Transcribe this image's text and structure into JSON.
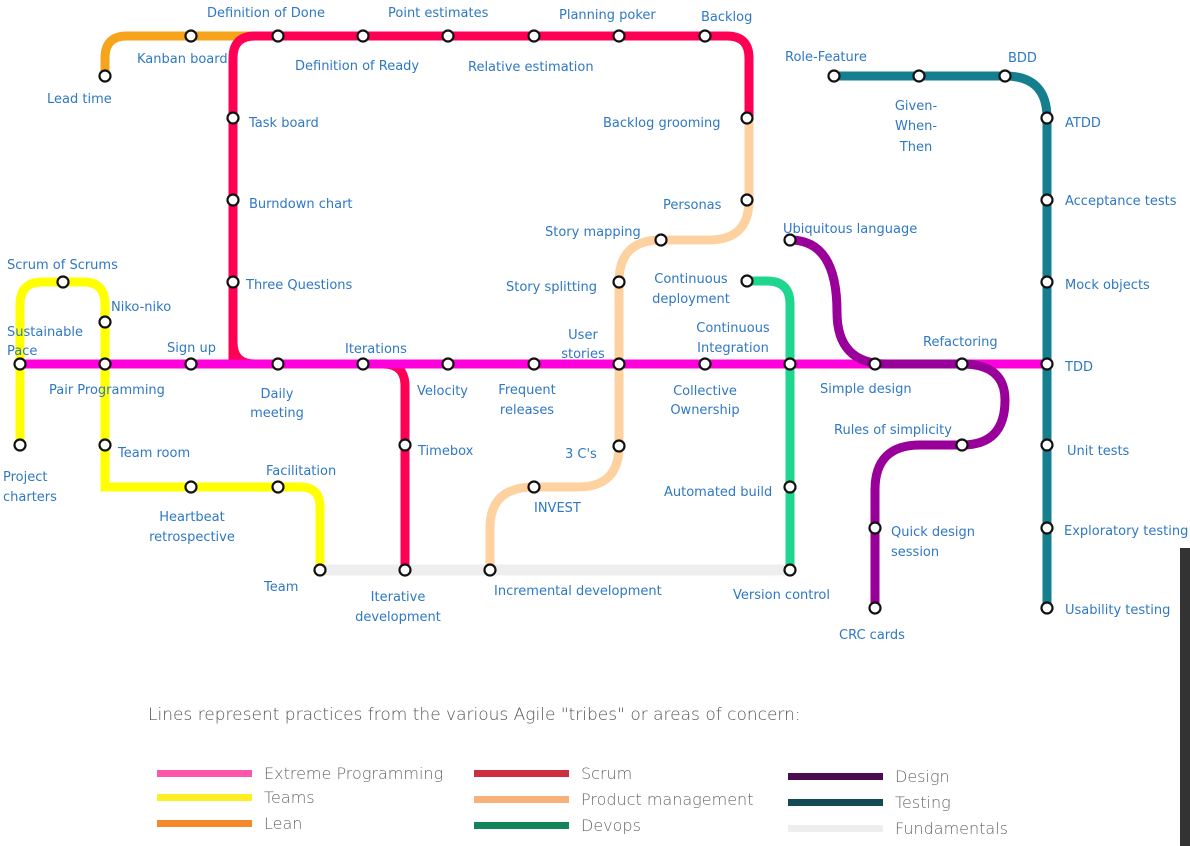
{
  "colors": {
    "xp": "#ff00dd",
    "scrum": "#ff0055",
    "lean": "#f5a41b",
    "teams": "#ffff00",
    "product": "#fdd2a0",
    "devops": "#1fd68f",
    "design": "#990099",
    "testing": "#167f8f",
    "fundamentals": "#eeeeee"
  },
  "stations": [
    {
      "id": "lead-time",
      "label": "Lead time"
    },
    {
      "id": "kanban-board",
      "label": "Kanban board"
    },
    {
      "id": "definition-of-done",
      "label": "Definition of Done"
    },
    {
      "id": "definition-of-ready",
      "label": "Definition of Ready"
    },
    {
      "id": "point-estimates",
      "label": "Point estimates"
    },
    {
      "id": "relative-estimation",
      "label": "Relative estimation"
    },
    {
      "id": "planning-poker",
      "label": "Planning poker"
    },
    {
      "id": "backlog",
      "label": "Backlog"
    },
    {
      "id": "backlog-grooming",
      "label": "Backlog grooming"
    },
    {
      "id": "personas",
      "label": "Personas"
    },
    {
      "id": "story-mapping",
      "label": "Story mapping"
    },
    {
      "id": "story-splitting",
      "label": "Story splitting"
    },
    {
      "id": "task-board",
      "label": "Task board"
    },
    {
      "id": "burndown-chart",
      "label": "Burndown chart"
    },
    {
      "id": "three-questions",
      "label": "Three Questions"
    },
    {
      "id": "scrum-of-scrums",
      "label": "Scrum of Scrums"
    },
    {
      "id": "niko-niko",
      "label": "Niko-niko"
    },
    {
      "id": "sustainable-pace",
      "label": "Sustainable Pace"
    },
    {
      "id": "sign-up",
      "label": "Sign up"
    },
    {
      "id": "pair-programming",
      "label": "Pair Programming"
    },
    {
      "id": "daily-meeting",
      "label": "Daily meeting"
    },
    {
      "id": "iterations",
      "label": "Iterations"
    },
    {
      "id": "velocity",
      "label": "Velocity"
    },
    {
      "id": "frequent-releases",
      "label": "Frequent releases"
    },
    {
      "id": "user-stories",
      "label": "User stories"
    },
    {
      "id": "continuous-deployment",
      "label": "Continuous deployment"
    },
    {
      "id": "continuous-integration",
      "label": "Continuous Integration"
    },
    {
      "id": "collective-ownership",
      "label": "Collective Ownership"
    },
    {
      "id": "simple-design",
      "label": "Simple design"
    },
    {
      "id": "refactoring",
      "label": "Refactoring"
    },
    {
      "id": "tdd",
      "label": "TDD"
    },
    {
      "id": "role-feature",
      "label": "Role-Feature"
    },
    {
      "id": "given-when-then",
      "label": "Given- When- Then"
    },
    {
      "id": "bdd",
      "label": "BDD"
    },
    {
      "id": "atdd",
      "label": "ATDD"
    },
    {
      "id": "acceptance-tests",
      "label": "Acceptance tests"
    },
    {
      "id": "mock-objects",
      "label": "Mock objects"
    },
    {
      "id": "ubiquitous-language",
      "label": "Ubiquitous language"
    },
    {
      "id": "rules-of-simplicity",
      "label": "Rules of simplicity"
    },
    {
      "id": "unit-tests",
      "label": "Unit tests"
    },
    {
      "id": "quick-design-session",
      "label": "Quick design session"
    },
    {
      "id": "exploratory-testing",
      "label": "Exploratory testing"
    },
    {
      "id": "usability-testing",
      "label": "Usability testing"
    },
    {
      "id": "crc-cards",
      "label": "CRC cards"
    },
    {
      "id": "project-charters",
      "label": "Project charters"
    },
    {
      "id": "team-room",
      "label": "Team room"
    },
    {
      "id": "facilitation",
      "label": "Facilitation"
    },
    {
      "id": "heartbeat-retrospective",
      "label": "Heartbeat retrospective"
    },
    {
      "id": "team",
      "label": "Team"
    },
    {
      "id": "timebox",
      "label": "Timebox"
    },
    {
      "id": "iterative-development",
      "label": "Iterative development"
    },
    {
      "id": "three-cs",
      "label": "3 C's"
    },
    {
      "id": "invest",
      "label": "INVEST"
    },
    {
      "id": "incremental-development",
      "label": "Incremental development"
    },
    {
      "id": "automated-build",
      "label": "Automated build"
    },
    {
      "id": "version-control",
      "label": "Version control"
    }
  ],
  "legend": {
    "intro": "Lines represent practices from the various Agile \"tribes\" or areas of concern:",
    "items": [
      {
        "label": "Extreme Programming",
        "color": "#ff55aa"
      },
      {
        "label": "Teams",
        "color": "#ffee22"
      },
      {
        "label": "Lean",
        "color": "#f5882b"
      },
      {
        "label": "Scrum",
        "color": "#cc2f3f"
      },
      {
        "label": "Product management",
        "color": "#f7b27b"
      },
      {
        "label": "Devops",
        "color": "#13845a"
      },
      {
        "label": "Design",
        "color": "#4a0d52"
      },
      {
        "label": "Testing",
        "color": "#124a55"
      },
      {
        "label": "Fundamentals",
        "color": "#eeeeee"
      }
    ]
  }
}
